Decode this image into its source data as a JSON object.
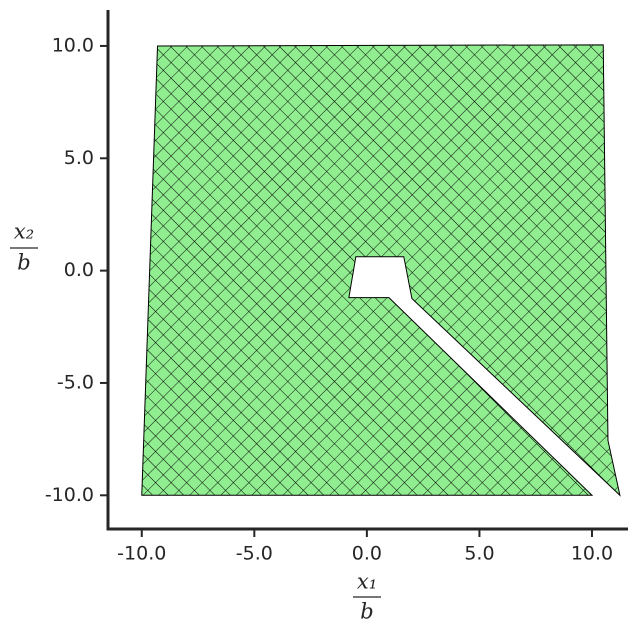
{
  "chart_data": {
    "type": "mesh",
    "x_label": {
      "numerator": "x₁",
      "denominator": "b"
    },
    "y_label": {
      "numerator": "x₂",
      "denominator": "b"
    },
    "x": [
      -9.3,
      10.5,
      10.71,
      11.24,
      2.0,
      1.64,
      -0.49,
      -0.8,
      0.98,
      10.0,
      -10.0
    ],
    "y": [
      10.0,
      10.05,
      -7.56,
      -10.0,
      -1.24,
      0.62,
      0.62,
      -1.2,
      -1.2,
      -10.0,
      -10.0
    ],
    "color": "#90ee90",
    "edge_color": "#000000",
    "xlim": [
      -11.5,
      11.6
    ],
    "ylim": [
      -11.5,
      11.6
    ],
    "xticks": [
      {
        "value": -10,
        "label": "-10.0"
      },
      {
        "value": -5,
        "label": "-5.0"
      },
      {
        "value": 0,
        "label": "0.0"
      },
      {
        "value": 5,
        "label": "5.0"
      },
      {
        "value": 10,
        "label": "10.0"
      }
    ],
    "yticks": [
      {
        "value": -10,
        "label": "-10.0"
      },
      {
        "value": -5,
        "label": "-5.0"
      },
      {
        "value": 0,
        "label": "0.0"
      },
      {
        "value": 5,
        "label": "5.0"
      },
      {
        "value": 10,
        "label": "10.0"
      }
    ],
    "grid": false
  }
}
